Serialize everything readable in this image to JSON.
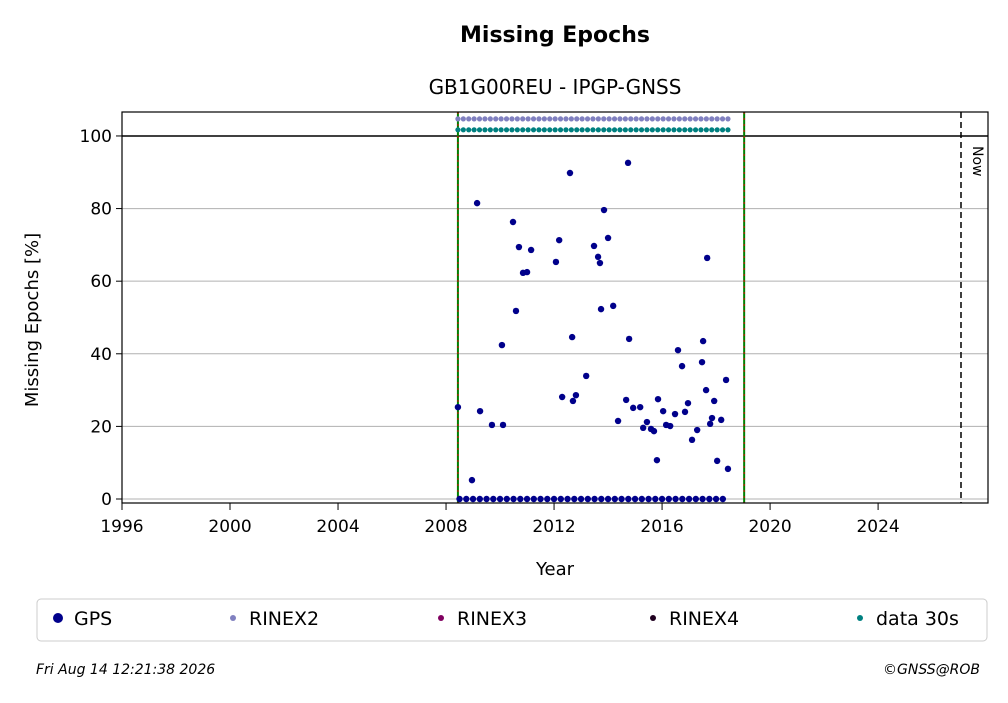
{
  "chart_data": {
    "type": "scatter",
    "title": "Missing Epochs",
    "subtitle": "GB1G00REU - IPGP-GNSS",
    "xlabel": "Year",
    "ylabel": "Missing Epochs [%]",
    "xlim": [
      1996,
      2028.07
    ],
    "ylim": [
      -1.1,
      106.6
    ],
    "xticks": [
      1996,
      2000,
      2004,
      2008,
      2012,
      2016,
      2020,
      2024
    ],
    "yticks": [
      0,
      20,
      40,
      60,
      80,
      100
    ],
    "grid": true,
    "period": [
      2008.44,
      2019.04
    ],
    "now": 2027.07,
    "now_label": "Now",
    "hline": 100,
    "series": [
      {
        "name": "GPS",
        "color": "#00008b",
        "x": [
          2008.44,
          2008.96,
          2009.15,
          2009.26,
          2009.7,
          2010.07,
          2010.11,
          2010.48,
          2010.59,
          2010.7,
          2010.85,
          2011.0,
          2011.15,
          2012.07,
          2012.19,
          2012.3,
          2012.59,
          2012.67,
          2012.7,
          2012.81,
          2013.19,
          2013.48,
          2013.63,
          2013.7,
          2013.74,
          2013.85,
          2014.0,
          2014.19,
          2014.37,
          2014.67,
          2014.74,
          2014.78,
          2014.93,
          2015.19,
          2015.3,
          2015.44,
          2015.59,
          2015.7,
          2015.81,
          2015.85,
          2016.04,
          2016.15,
          2016.3,
          2016.48,
          2016.59,
          2016.74,
          2016.85,
          2016.96,
          2017.11,
          2017.3,
          2017.48,
          2017.52,
          2017.63,
          2017.67,
          2017.78,
          2017.85,
          2017.93,
          2018.04,
          2018.19,
          2018.37,
          2018.44,
          2008.5,
          2008.75,
          2009.0,
          2009.25,
          2009.5,
          2009.75,
          2010.0,
          2010.25,
          2010.5,
          2010.75,
          2011.0,
          2011.25,
          2011.5,
          2011.75,
          2012.0,
          2012.25,
          2012.5,
          2012.75,
          2013.0,
          2013.25,
          2013.5,
          2013.75,
          2014.0,
          2014.25,
          2014.5,
          2014.75,
          2015.0,
          2015.25,
          2015.5,
          2015.75,
          2016.0,
          2016.25,
          2016.5,
          2016.75,
          2017.0,
          2017.25,
          2017.5,
          2017.75,
          2018.0,
          2018.25
        ],
        "values": [
          25.3,
          5.2,
          81.5,
          24.2,
          20.4,
          42.4,
          20.4,
          76.3,
          51.8,
          69.4,
          62.3,
          62.5,
          68.6,
          65.3,
          71.3,
          28.1,
          89.8,
          44.6,
          27.0,
          28.6,
          33.9,
          69.7,
          66.7,
          65.0,
          52.3,
          79.6,
          71.9,
          53.2,
          21.5,
          27.3,
          92.6,
          44.1,
          25.1,
          25.3,
          19.6,
          21.2,
          19.3,
          18.7,
          10.7,
          27.5,
          24.2,
          20.4,
          20.1,
          23.4,
          41.0,
          36.6,
          24.0,
          26.4,
          16.3,
          19.0,
          37.7,
          43.5,
          30.0,
          66.4,
          20.7,
          22.3,
          27.0,
          10.5,
          21.8,
          32.8,
          8.3,
          0,
          0,
          0,
          0,
          0,
          0,
          0,
          0,
          0,
          0,
          0,
          0,
          0,
          0,
          0,
          0,
          0,
          0,
          0,
          0,
          0,
          0,
          0,
          0,
          0,
          0,
          0,
          0,
          0,
          0,
          0,
          0,
          0,
          0,
          0,
          0,
          0,
          0,
          0,
          0
        ]
      },
      {
        "name": "RINEX2",
        "color": "#8080c0",
        "x": [
          2008.44,
          2008.64,
          2008.84,
          2009.04,
          2009.24,
          2009.44,
          2009.64,
          2009.84,
          2010.04,
          2010.24,
          2010.44,
          2010.64,
          2010.84,
          2011.04,
          2011.24,
          2011.44,
          2011.64,
          2011.84,
          2012.04,
          2012.24,
          2012.44,
          2012.64,
          2012.84,
          2013.04,
          2013.24,
          2013.44,
          2013.64,
          2013.84,
          2014.04,
          2014.24,
          2014.44,
          2014.64,
          2014.84,
          2015.04,
          2015.24,
          2015.44,
          2015.64,
          2015.84,
          2016.04,
          2016.24,
          2016.44,
          2016.64,
          2016.84,
          2017.04,
          2017.24,
          2017.44,
          2017.64,
          2017.84,
          2018.04,
          2018.24,
          2018.44
        ],
        "values": [
          104.7,
          104.7,
          104.7,
          104.7,
          104.7,
          104.7,
          104.7,
          104.7,
          104.7,
          104.7,
          104.7,
          104.7,
          104.7,
          104.7,
          104.7,
          104.7,
          104.7,
          104.7,
          104.7,
          104.7,
          104.7,
          104.7,
          104.7,
          104.7,
          104.7,
          104.7,
          104.7,
          104.7,
          104.7,
          104.7,
          104.7,
          104.7,
          104.7,
          104.7,
          104.7,
          104.7,
          104.7,
          104.7,
          104.7,
          104.7,
          104.7,
          104.7,
          104.7,
          104.7,
          104.7,
          104.7,
          104.7,
          104.7,
          104.7,
          104.7,
          104.7
        ]
      },
      {
        "name": "RINEX3",
        "color": "#800060",
        "x": [],
        "values": []
      },
      {
        "name": "RINEX4",
        "color": "#200020",
        "x": [],
        "values": []
      },
      {
        "name": "data 30s",
        "color": "#008080",
        "x": [
          2008.44,
          2008.64,
          2008.84,
          2009.04,
          2009.24,
          2009.44,
          2009.64,
          2009.84,
          2010.04,
          2010.24,
          2010.44,
          2010.64,
          2010.84,
          2011.04,
          2011.24,
          2011.44,
          2011.64,
          2011.84,
          2012.04,
          2012.24,
          2012.44,
          2012.64,
          2012.84,
          2013.04,
          2013.24,
          2013.44,
          2013.64,
          2013.84,
          2014.04,
          2014.24,
          2014.44,
          2014.64,
          2014.84,
          2015.04,
          2015.24,
          2015.44,
          2015.64,
          2015.84,
          2016.04,
          2016.24,
          2016.44,
          2016.64,
          2016.84,
          2017.04,
          2017.24,
          2017.44,
          2017.64,
          2017.84,
          2018.04,
          2018.24,
          2018.44
        ],
        "values": [
          101.7,
          101.7,
          101.7,
          101.7,
          101.7,
          101.7,
          101.7,
          101.7,
          101.7,
          101.7,
          101.7,
          101.7,
          101.7,
          101.7,
          101.7,
          101.7,
          101.7,
          101.7,
          101.7,
          101.7,
          101.7,
          101.7,
          101.7,
          101.7,
          101.7,
          101.7,
          101.7,
          101.7,
          101.7,
          101.7,
          101.7,
          101.7,
          101.7,
          101.7,
          101.7,
          101.7,
          101.7,
          101.7,
          101.7,
          101.7,
          101.7,
          101.7,
          101.7,
          101.7,
          101.7,
          101.7,
          101.7,
          101.7,
          101.7,
          101.7,
          101.7
        ]
      }
    ],
    "timestamp": "Fri Aug 14 12:21:38 2026",
    "credit": "©GNSS@ROB"
  }
}
